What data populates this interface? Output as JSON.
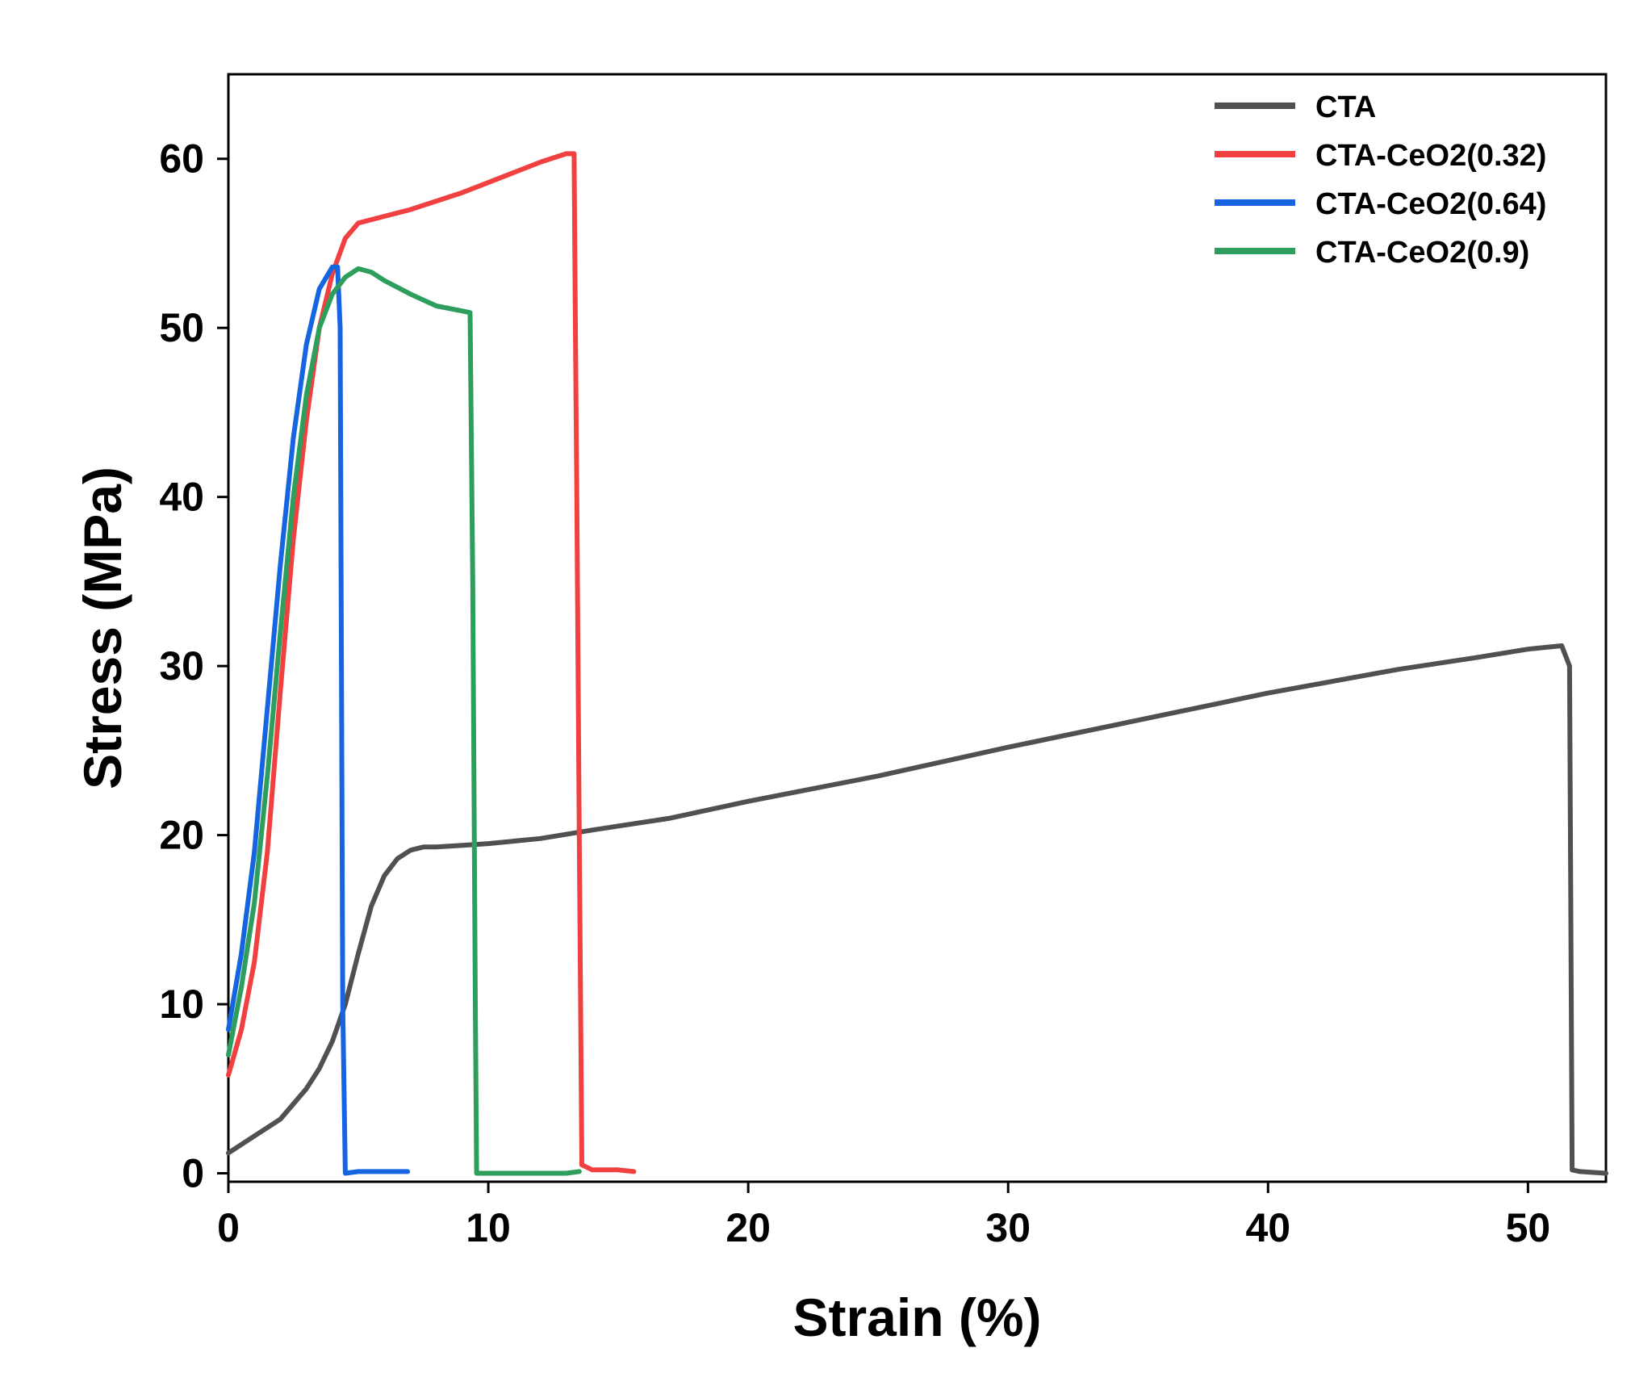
{
  "chart_data": {
    "type": "line",
    "title": "",
    "xlabel": "Strain (%)",
    "ylabel": "Stress (MPa)",
    "xlim": [
      0,
      53
    ],
    "ylim": [
      -0.5,
      65
    ],
    "xticks": [
      0,
      10,
      20,
      30,
      40,
      50
    ],
    "yticks": [
      0,
      10,
      20,
      30,
      40,
      50,
      60
    ],
    "grid": false,
    "legend_position": "top-right",
    "series": [
      {
        "name": "CTA",
        "color": "#505050",
        "x": [
          0,
          1,
          2,
          3,
          3.5,
          4,
          4.5,
          5,
          5.5,
          6,
          6.5,
          7,
          7.5,
          8,
          9,
          10,
          12,
          14,
          17,
          20,
          25,
          30,
          35,
          40,
          45,
          48,
          50,
          51.3,
          51.6,
          51.7,
          52,
          53
        ],
        "y": [
          1.2,
          2.2,
          3.2,
          5.0,
          6.2,
          7.8,
          10.0,
          13.0,
          15.8,
          17.6,
          18.6,
          19.1,
          19.3,
          19.3,
          19.4,
          19.5,
          19.8,
          20.3,
          21.0,
          22.0,
          23.5,
          25.2,
          26.8,
          28.4,
          29.8,
          30.5,
          31.0,
          31.2,
          30.0,
          0.2,
          0.1,
          0.0
        ]
      },
      {
        "name": "CTA-CeO2(0.32)",
        "color": "#f04040",
        "x": [
          0,
          0.5,
          1,
          1.5,
          2,
          2.5,
          3,
          3.5,
          4,
          4.5,
          5,
          6,
          7,
          8,
          9,
          10,
          11,
          12,
          13,
          13.3,
          13.35,
          13.4,
          13.5,
          13.6,
          14,
          15,
          15.6
        ],
        "y": [
          5.8,
          8.5,
          12.5,
          19.0,
          28.5,
          37.5,
          44.5,
          50.0,
          53.2,
          55.3,
          56.2,
          56.6,
          57.0,
          57.5,
          58.0,
          58.6,
          59.2,
          59.8,
          60.3,
          60.3,
          50.0,
          41.0,
          20.0,
          0.5,
          0.2,
          0.2,
          0.1
        ]
      },
      {
        "name": "CTA-CeO2(0.64)",
        "color": "#1565e0",
        "x": [
          0,
          0.5,
          1,
          1.5,
          2,
          2.5,
          3,
          3.5,
          4,
          4.2,
          4.3,
          4.35,
          4.4,
          4.5,
          5,
          6,
          6.9
        ],
        "y": [
          8.5,
          13.0,
          19.0,
          27.5,
          36.0,
          43.5,
          49.0,
          52.3,
          53.6,
          53.6,
          50.0,
          30.0,
          10.0,
          0.0,
          0.1,
          0.1,
          0.1
        ]
      },
      {
        "name": "CTA-CeO2(0.9)",
        "color": "#2e9e5c",
        "x": [
          0,
          0.5,
          1,
          1.5,
          2,
          2.5,
          3,
          3.5,
          4,
          4.5,
          5,
          5.5,
          6,
          7,
          8,
          9,
          9.3,
          9.4,
          9.5,
          9.55,
          10,
          11,
          12,
          13,
          13.5
        ],
        "y": [
          7.0,
          11.0,
          16.0,
          23.5,
          32.0,
          40.0,
          46.0,
          50.0,
          52.0,
          53.0,
          53.5,
          53.3,
          52.8,
          52.0,
          51.3,
          51.0,
          50.9,
          35.0,
          10.0,
          0.0,
          0.0,
          0.0,
          0.0,
          0.0,
          0.1
        ]
      }
    ]
  }
}
